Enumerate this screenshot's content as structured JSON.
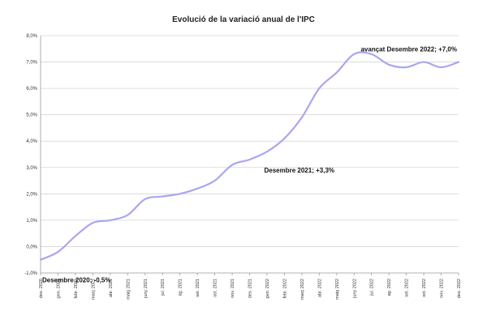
{
  "chart_data": {
    "type": "line",
    "title": "Evolució de la variació anual de l'IPC",
    "xlabel": "",
    "ylabel": "",
    "ylim": [
      -1.0,
      8.0
    ],
    "yticks": [
      "-1,0%",
      "0,0%",
      "1,0%",
      "2,0%",
      "3,0%",
      "4,0%",
      "5,0%",
      "6,0%",
      "7,0%",
      "8,0%"
    ],
    "grid": true,
    "legend": "none",
    "categories": [
      "des. 2020",
      "gen. 2021",
      "febr. 2021",
      "març 2021",
      "abr. 2021",
      "maig 2021",
      "juny 2021",
      "jul. 2021",
      "ag. 2021",
      "set. 2021",
      "oct. 2021",
      "nov. 2021",
      "des. 2021",
      "gen. 2022",
      "febr. 2022",
      "març 2022",
      "abr. 2022",
      "maig 2022",
      "juny 2022",
      "jul. 2022",
      "ag. 2022",
      "set. 2022",
      "oct. 2022",
      "nov. 2022",
      "des. 2022"
    ],
    "series": [
      {
        "color": "#a9a6f0",
        "values": [
          -0.5,
          -0.2,
          0.4,
          0.9,
          1.0,
          1.2,
          1.8,
          1.9,
          2.0,
          2.2,
          2.5,
          3.1,
          3.3,
          3.6,
          4.1,
          4.9,
          6.0,
          6.6,
          7.3,
          7.3,
          6.9,
          6.8,
          7.0,
          6.8,
          7.0
        ]
      }
    ],
    "annotations": [
      {
        "text": "Desembre 2020;  -0,5%",
        "category": "des. 2020",
        "value": -0.5
      },
      {
        "text": "Desembre 2021;  +3,3%",
        "category": "des. 2021",
        "value": 3.3
      },
      {
        "text": "avançat Desembre 2022; +7,0%",
        "category": "des. 2022",
        "value": 7.0
      }
    ]
  }
}
